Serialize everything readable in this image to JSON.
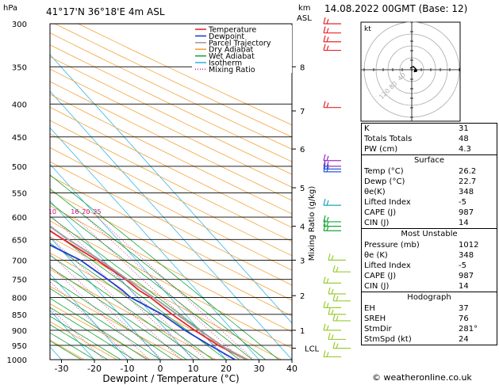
{
  "header": {
    "location": "41°17'N  36°18'E  4m  ASL",
    "datetime": "14.08.2022  00GMT  (Base: 12)",
    "hpa_label": "hPa",
    "km_label": "km",
    "asl_label": "ASL"
  },
  "chart_data": {
    "type": "skew-t",
    "xlabel": "Dewpoint / Temperature (°C)",
    "ylabel_right": "Mixing Ratio (g/kg)",
    "xlim": [
      -35,
      40
    ],
    "x_ticks": [
      -30,
      -20,
      -10,
      0,
      10,
      20,
      30,
      40
    ],
    "pressure_levels": [
      300,
      350,
      400,
      450,
      500,
      550,
      600,
      650,
      700,
      750,
      800,
      850,
      900,
      950,
      1000
    ],
    "km_ticks": [
      {
        "km": "8",
        "p": 350
      },
      {
        "km": "7",
        "p": 410
      },
      {
        "km": "6",
        "p": 470
      },
      {
        "km": "5",
        "p": 540
      },
      {
        "km": "4",
        "p": 620
      },
      {
        "km": "3",
        "p": 700
      },
      {
        "km": "2",
        "p": 795
      },
      {
        "km": "1",
        "p": 900
      }
    ],
    "lcl": {
      "label": "LCL",
      "p": 960
    },
    "mixing_ratios": [
      "1",
      "2",
      "3",
      "4",
      "6",
      "8",
      "10",
      "16",
      "20",
      "25"
    ],
    "legend": [
      "Temperature",
      "Dewpoint",
      "Parcel Trajectory",
      "Dry Adiabat",
      "Wet Adiabat",
      "Isotherm",
      "Mixing Ratio"
    ],
    "series": [
      {
        "name": "Temperature",
        "color": "#e8262c",
        "points": [
          [
            1000,
            26.2
          ],
          [
            950,
            21.5
          ],
          [
            900,
            18.5
          ],
          [
            850,
            16
          ],
          [
            800,
            14
          ],
          [
            780,
            12.5
          ],
          [
            750,
            11.5
          ],
          [
            700,
            8
          ],
          [
            650,
            3.5
          ],
          [
            600,
            -1
          ],
          [
            560,
            -3.5
          ],
          [
            500,
            -11
          ],
          [
            470,
            -14
          ],
          [
            430,
            -19
          ],
          [
            400,
            -24.5
          ],
          [
            350,
            -34
          ],
          [
            300,
            -44
          ]
        ]
      },
      {
        "name": "Dewpoint",
        "color": "#2040d0",
        "points": [
          [
            1000,
            22.7
          ],
          [
            950,
            19
          ],
          [
            900,
            15.5
          ],
          [
            850,
            13
          ],
          [
            800,
            8
          ],
          [
            780,
            7.5
          ],
          [
            750,
            6
          ],
          [
            700,
            3
          ],
          [
            650,
            -4
          ],
          [
            620,
            -8
          ],
          [
            600,
            -16
          ],
          [
            560,
            -20
          ],
          [
            530,
            -18
          ],
          [
            500,
            -15
          ],
          [
            480,
            -26
          ],
          [
            460,
            -38
          ],
          [
            440,
            -42
          ],
          [
            400,
            -44
          ],
          [
            350,
            -59
          ],
          [
            300,
            -74
          ]
        ]
      },
      {
        "name": "Parcel Trajectory",
        "color": "#a0a0a0",
        "points": [
          [
            1000,
            26.2
          ],
          [
            960,
            23
          ],
          [
            900,
            20
          ],
          [
            850,
            17.5
          ],
          [
            800,
            15
          ],
          [
            750,
            12
          ],
          [
            700,
            9
          ],
          [
            650,
            5
          ],
          [
            600,
            1.5
          ],
          [
            550,
            -2.5
          ],
          [
            500,
            -7.5
          ],
          [
            450,
            -13
          ],
          [
            400,
            -20
          ],
          [
            350,
            -28
          ],
          [
            300,
            -38
          ]
        ]
      }
    ]
  },
  "hodograph": {
    "label": "kt",
    "rings": [
      "40",
      "80",
      "120"
    ]
  },
  "indices": {
    "k_label": "K",
    "k_value": "31",
    "tt_label": "Totals Totals",
    "tt_value": "48",
    "pw_label": "PW (cm)",
    "pw_value": "4.3"
  },
  "surface": {
    "title": "Surface",
    "rows": [
      {
        "label": "Temp (°C)",
        "value": "26.2"
      },
      {
        "label": "Dewp (°C)",
        "value": "22.7"
      },
      {
        "label": "θe(K)",
        "value": "348"
      },
      {
        "label": "Lifted Index",
        "value": "-5"
      },
      {
        "label": "CAPE (J)",
        "value": "987"
      },
      {
        "label": "CIN (J)",
        "value": "14"
      }
    ]
  },
  "unstable": {
    "title": "Most Unstable",
    "rows": [
      {
        "label": "Pressure (mb)",
        "value": "1012"
      },
      {
        "label": "θe (K)",
        "value": "348"
      },
      {
        "label": "Lifted Index",
        "value": "-5"
      },
      {
        "label": "CAPE (J)",
        "value": "987"
      },
      {
        "label": "CIN (J)",
        "value": "14"
      }
    ]
  },
  "hodo_stats": {
    "title": "Hodograph",
    "rows": [
      {
        "label": "EH",
        "value": "37"
      },
      {
        "label": "SREH",
        "value": "76"
      },
      {
        "label": "StmDir",
        "value": "281°"
      },
      {
        "label": "StmSpd (kt)",
        "value": "24"
      }
    ]
  },
  "credit": "© weatheronline.co.uk"
}
